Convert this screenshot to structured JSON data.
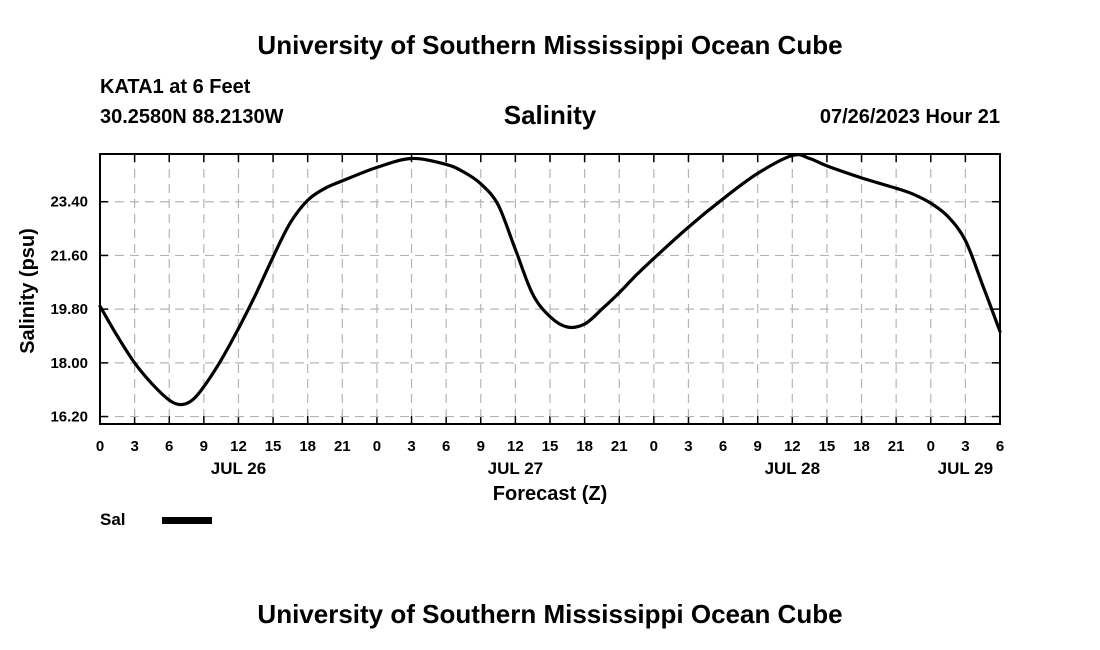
{
  "header": {
    "title": "University of Southern Mississippi Ocean Cube",
    "station": "KATA1 at 6 Feet",
    "coordinates": "30.2580N  88.2130W",
    "datetime": "07/26/2023 Hour 21"
  },
  "footer": {
    "title": "University of Southern Mississippi Ocean Cube"
  },
  "legend": {
    "label": "Sal"
  },
  "chart_data": {
    "type": "line",
    "title": "Salinity",
    "xlabel": "Forecast (Z)",
    "ylabel": "Salinity (psu)",
    "x_units": "hours since JUL 26 00Z",
    "xlim": [
      0,
      78
    ],
    "ylim": [
      15.95,
      25.0
    ],
    "grid": true,
    "legend_position": "below-left",
    "x_tick_values": [
      0,
      3,
      6,
      9,
      12,
      15,
      18,
      21,
      24,
      27,
      30,
      33,
      36,
      39,
      42,
      45,
      48,
      51,
      54,
      57,
      60,
      63,
      66,
      69,
      72,
      75,
      78
    ],
    "x_tick_labels": [
      "0",
      "3",
      "6",
      "9",
      "12",
      "15",
      "18",
      "21",
      "0",
      "3",
      "6",
      "9",
      "12",
      "15",
      "18",
      "21",
      "0",
      "3",
      "6",
      "9",
      "12",
      "15",
      "18",
      "21",
      "0",
      "3",
      "6"
    ],
    "y_tick_values": [
      16.2,
      18.0,
      19.8,
      21.6,
      23.4
    ],
    "y_tick_labels": [
      "16.20",
      "18.00",
      "19.80",
      "21.60",
      "23.40"
    ],
    "day_labels": [
      {
        "label": "JUL 26",
        "hour": 12
      },
      {
        "label": "JUL 27",
        "hour": 36
      },
      {
        "label": "JUL 28",
        "hour": 60
      },
      {
        "label": "JUL 29",
        "hour": 75
      }
    ],
    "series": [
      {
        "name": "Sal",
        "color": "#000000",
        "x": [
          0,
          1.5,
          3,
          4.5,
          6,
          7,
          8,
          9,
          10.5,
          12,
          13.5,
          15,
          16.5,
          18,
          19.5,
          21,
          24,
          27,
          30,
          31.5,
          33,
          34.5,
          36,
          37.5,
          39,
          40.5,
          42,
          43.5,
          45,
          46.5,
          48,
          51,
          54,
          57,
          60,
          61.5,
          63,
          66,
          69,
          70.5,
          72,
          73.5,
          75,
          76.5,
          78
        ],
        "y": [
          19.9,
          18.9,
          18.0,
          17.3,
          16.75,
          16.6,
          16.75,
          17.2,
          18.1,
          19.15,
          20.3,
          21.55,
          22.7,
          23.45,
          23.85,
          24.1,
          24.55,
          24.85,
          24.65,
          24.4,
          24.0,
          23.3,
          21.8,
          20.3,
          19.55,
          19.2,
          19.3,
          19.8,
          20.35,
          20.95,
          21.5,
          22.55,
          23.5,
          24.35,
          24.95,
          24.85,
          24.6,
          24.2,
          23.85,
          23.65,
          23.35,
          22.9,
          22.1,
          20.6,
          19.05
        ]
      }
    ]
  }
}
